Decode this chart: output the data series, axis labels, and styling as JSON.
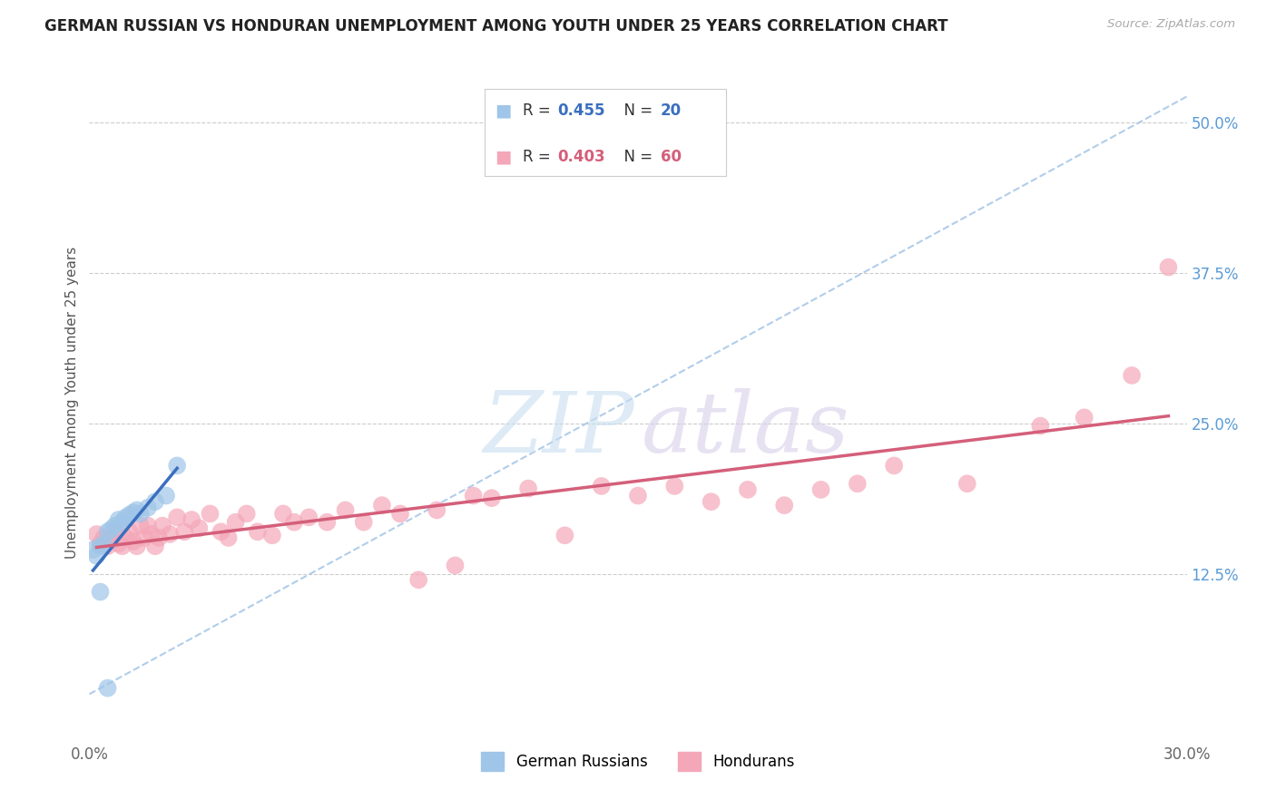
{
  "title": "GERMAN RUSSIAN VS HONDURAN UNEMPLOYMENT AMONG YOUTH UNDER 25 YEARS CORRELATION CHART",
  "source": "Source: ZipAtlas.com",
  "ylabel": "Unemployment Among Youth under 25 years",
  "xlim": [
    0.0,
    0.3
  ],
  "ylim": [
    -0.01,
    0.545
  ],
  "xtick_vals": [
    0.0,
    0.05,
    0.1,
    0.15,
    0.2,
    0.25,
    0.3
  ],
  "xtick_labels": [
    "0.0%",
    "",
    "",
    "",
    "",
    "",
    "30.0%"
  ],
  "yticks_right": [
    0.125,
    0.25,
    0.375,
    0.5
  ],
  "ytick_labels_right": [
    "12.5%",
    "25.0%",
    "37.5%",
    "50.0%"
  ],
  "blue_R": "0.455",
  "blue_N": "20",
  "pink_R": "0.403",
  "pink_N": "60",
  "blue_scatter_color": "#9fc5e8",
  "pink_scatter_color": "#f4a7b9",
  "blue_line_color": "#3a6fbf",
  "pink_line_color": "#d45f7a",
  "dashed_line_color": "#a8c8e8",
  "grid_color": "#cccccc",
  "blue_label": "German Russians",
  "pink_label": "Hondurans",
  "blue_points_x": [
    0.001,
    0.002,
    0.003,
    0.004,
    0.005,
    0.006,
    0.007,
    0.008,
    0.009,
    0.01,
    0.011,
    0.012,
    0.013,
    0.014,
    0.016,
    0.018,
    0.021,
    0.024,
    0.003,
    0.005
  ],
  "blue_points_y": [
    0.145,
    0.14,
    0.148,
    0.15,
    0.16,
    0.162,
    0.165,
    0.17,
    0.168,
    0.172,
    0.174,
    0.176,
    0.178,
    0.175,
    0.18,
    0.185,
    0.19,
    0.215,
    0.11,
    0.03
  ],
  "pink_points_x": [
    0.002,
    0.003,
    0.004,
    0.005,
    0.006,
    0.007,
    0.008,
    0.009,
    0.01,
    0.011,
    0.012,
    0.013,
    0.014,
    0.015,
    0.016,
    0.017,
    0.018,
    0.019,
    0.02,
    0.022,
    0.024,
    0.026,
    0.028,
    0.03,
    0.033,
    0.036,
    0.038,
    0.04,
    0.043,
    0.046,
    0.05,
    0.053,
    0.056,
    0.06,
    0.065,
    0.07,
    0.075,
    0.08,
    0.085,
    0.09,
    0.095,
    0.1,
    0.105,
    0.11,
    0.12,
    0.13,
    0.14,
    0.15,
    0.16,
    0.17,
    0.18,
    0.19,
    0.2,
    0.21,
    0.22,
    0.24,
    0.26,
    0.272,
    0.285,
    0.295
  ],
  "pink_points_y": [
    0.158,
    0.15,
    0.155,
    0.148,
    0.155,
    0.16,
    0.15,
    0.148,
    0.155,
    0.16,
    0.152,
    0.148,
    0.165,
    0.155,
    0.165,
    0.158,
    0.148,
    0.155,
    0.165,
    0.158,
    0.172,
    0.16,
    0.17,
    0.163,
    0.175,
    0.16,
    0.155,
    0.168,
    0.175,
    0.16,
    0.157,
    0.175,
    0.168,
    0.172,
    0.168,
    0.178,
    0.168,
    0.182,
    0.175,
    0.12,
    0.178,
    0.132,
    0.19,
    0.188,
    0.196,
    0.157,
    0.198,
    0.19,
    0.198,
    0.185,
    0.195,
    0.182,
    0.195,
    0.2,
    0.215,
    0.2,
    0.248,
    0.255,
    0.29,
    0.38
  ]
}
